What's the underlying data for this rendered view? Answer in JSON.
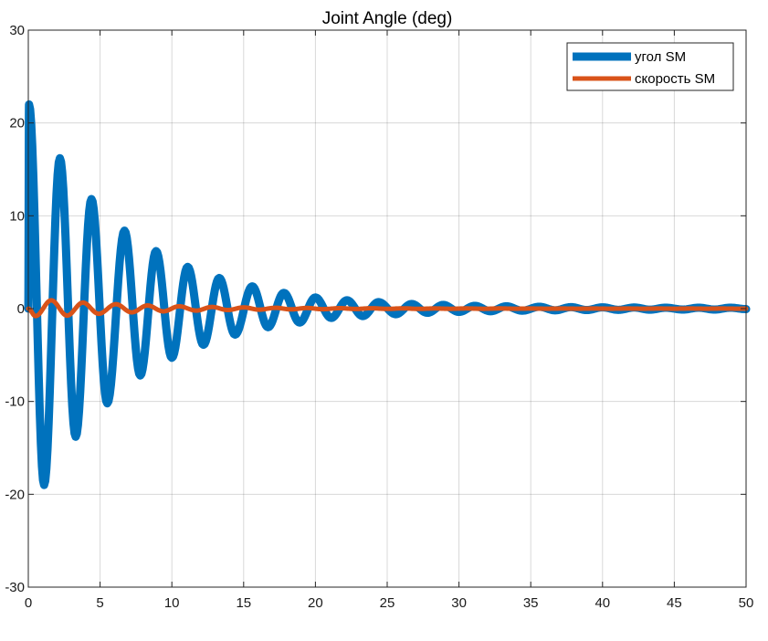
{
  "chart_data": {
    "type": "line",
    "title": "Joint Angle (deg)",
    "xlabel": "",
    "ylabel": "",
    "xlim": [
      0,
      50
    ],
    "ylim": [
      -30,
      30
    ],
    "xticks": [
      0,
      5,
      10,
      15,
      20,
      25,
      30,
      35,
      40,
      45,
      50
    ],
    "yticks": [
      -30,
      -20,
      -10,
      0,
      10,
      20,
      30
    ],
    "grid": true,
    "legend_position": "top-right",
    "series": [
      {
        "name": "угол SM",
        "color": "#0072BD",
        "x": [
          0,
          0.05,
          1.1,
          2.2,
          3.3,
          4.4,
          5.5,
          6.7,
          7.8,
          8.9,
          10.0,
          11.1,
          12.2,
          13.3,
          14.4,
          15.6,
          16.7,
          17.8,
          18.9,
          20.0,
          21.1,
          22.2,
          23.3,
          24.4,
          25.6,
          26.7,
          27.8,
          28.9,
          30.0,
          31.1,
          32.2,
          33.3,
          34.4,
          35.6,
          36.7,
          37.8,
          38.9,
          40.0,
          41.1,
          42.2,
          43.3,
          44.4,
          45.6,
          46.7,
          47.8,
          48.9,
          50.0
        ],
        "values": [
          0,
          22.0,
          -19.0,
          16.2,
          -13.8,
          11.8,
          -10.2,
          8.4,
          -7.2,
          6.2,
          -5.3,
          4.5,
          -3.9,
          3.3,
          -2.8,
          2.4,
          -2.0,
          1.7,
          -1.5,
          1.2,
          -1.0,
          0.9,
          -0.8,
          0.7,
          -0.6,
          0.5,
          -0.45,
          0.4,
          -0.35,
          0.3,
          -0.28,
          0.25,
          -0.22,
          0.2,
          -0.18,
          0.16,
          -0.15,
          0.14,
          -0.13,
          0.12,
          -0.11,
          0.1,
          -0.1,
          0.1,
          -0.1,
          0.1,
          -0.05
        ]
      },
      {
        "name": "скорость SM",
        "color": "#D95319",
        "x": [
          0,
          0.5,
          1.6,
          2.7,
          3.8,
          4.9,
          6.1,
          7.2,
          8.3,
          9.4,
          10.5,
          11.7,
          12.8,
          13.9,
          15.0,
          16.1,
          17.2,
          18.3,
          19.4,
          20.5,
          21.7,
          22.8,
          23.9,
          25.0,
          26.1,
          27.2,
          28.3,
          29.4,
          30.5,
          31.7,
          32.8,
          33.9,
          35.0,
          36.1,
          37.2,
          38.3,
          39.4,
          40.5,
          41.7,
          42.8,
          43.9,
          45.0,
          46.1,
          47.2,
          48.3,
          49.4,
          50.0
        ],
        "values": [
          0,
          -0.8,
          0.9,
          -0.75,
          0.65,
          -0.55,
          0.48,
          -0.4,
          0.34,
          -0.29,
          0.25,
          -0.21,
          0.18,
          -0.15,
          0.13,
          -0.11,
          0.09,
          -0.08,
          0.07,
          -0.06,
          0.05,
          -0.04,
          0.04,
          -0.03,
          0.03,
          -0.03,
          0.02,
          -0.02,
          0.02,
          -0.02,
          0.02,
          -0.01,
          0.01,
          -0.01,
          0.01,
          -0.01,
          0.01,
          -0.01,
          0.01,
          -0.01,
          0.01,
          -0.01,
          0.01,
          -0.01,
          0.01,
          -0.01,
          0
        ]
      }
    ]
  }
}
